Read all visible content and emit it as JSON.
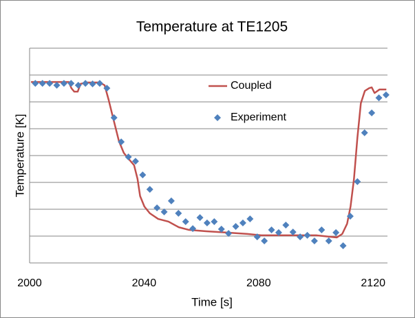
{
  "chart_data": {
    "type": "line",
    "title": "Temperature at TE1205",
    "xlabel": "Time [s]",
    "ylabel": "Temperature [K]",
    "xlim": [
      2000,
      2125
    ],
    "xticks": [
      2000,
      2040,
      2080,
      2120
    ],
    "ylim": [
      0,
      8
    ],
    "yticks": [
      0,
      1,
      2,
      3,
      4,
      5,
      6,
      7,
      8
    ],
    "grid": true,
    "series": [
      {
        "name": "Coupled",
        "color": "#c0504d",
        "style": "line",
        "x": [
          2000.5,
          2004.1,
          2013.7,
          2014.6,
          2015.6,
          2016.8,
          2017.8,
          2019.7,
          2024.5,
          2026.2,
          2027.6,
          2028.8,
          2030.0,
          2031.2,
          2032.9,
          2034.8,
          2036.5,
          2037.7,
          2038.6,
          2040.1,
          2042.0,
          2044.9,
          2048.5,
          2052.1,
          2055.7,
          2061.7,
          2068.9,
          2076.1,
          2080.9,
          2085.7,
          2092.9,
          2100.1,
          2107.3,
          2109.2,
          2110.9,
          2112.1,
          2113.3,
          2114.5,
          2115.7,
          2117.1,
          2118.6,
          2119.5,
          2120.5,
          2122.2,
          2124.6
        ],
        "values": [
          6.74,
          6.74,
          6.74,
          6.51,
          6.38,
          6.38,
          6.67,
          6.72,
          6.72,
          6.62,
          6.08,
          5.56,
          5.05,
          4.54,
          4.1,
          3.85,
          3.64,
          3.13,
          2.49,
          2.1,
          1.85,
          1.64,
          1.54,
          1.33,
          1.23,
          1.18,
          1.13,
          1.08,
          1.03,
          1.03,
          1.03,
          1.03,
          0.95,
          1.08,
          1.46,
          2.1,
          3.13,
          4.67,
          5.95,
          6.41,
          6.51,
          6.54,
          6.33,
          6.46,
          6.46
        ]
      },
      {
        "name": "Experiment",
        "color": "#4f81bd",
        "style": "markers",
        "x": [
          2002,
          2004.5,
          2007,
          2009.5,
          2012,
          2014.5,
          2017,
          2019.5,
          2022,
          2024.5,
          2027,
          2029.5,
          2032,
          2034.5,
          2037,
          2039.5,
          2042,
          2044.5,
          2047,
          2049.5,
          2052,
          2054.5,
          2057,
          2059.5,
          2062,
          2064.5,
          2067,
          2069.5,
          2072,
          2074.5,
          2077,
          2079.5,
          2082,
          2084.5,
          2087,
          2089.5,
          2092,
          2094.5,
          2097,
          2099.5,
          2102,
          2104.5,
          2107,
          2109.5,
          2112,
          2114.5,
          2117,
          2119.5,
          2122,
          2124.5
        ],
        "values": [
          6.69,
          6.69,
          6.69,
          6.62,
          6.69,
          6.69,
          6.62,
          6.69,
          6.67,
          6.69,
          6.51,
          5.41,
          4.51,
          3.95,
          3.79,
          3.28,
          2.74,
          2.05,
          1.9,
          2.31,
          1.85,
          1.54,
          1.28,
          1.69,
          1.49,
          1.54,
          1.26,
          1.1,
          1.36,
          1.49,
          1.64,
          0.97,
          0.82,
          1.23,
          1.13,
          1.41,
          1.15,
          0.97,
          1.03,
          0.82,
          1.23,
          0.82,
          1.13,
          0.64,
          1.74,
          3.03,
          4.85,
          5.59,
          6.15,
          6.26
        ]
      }
    ]
  }
}
